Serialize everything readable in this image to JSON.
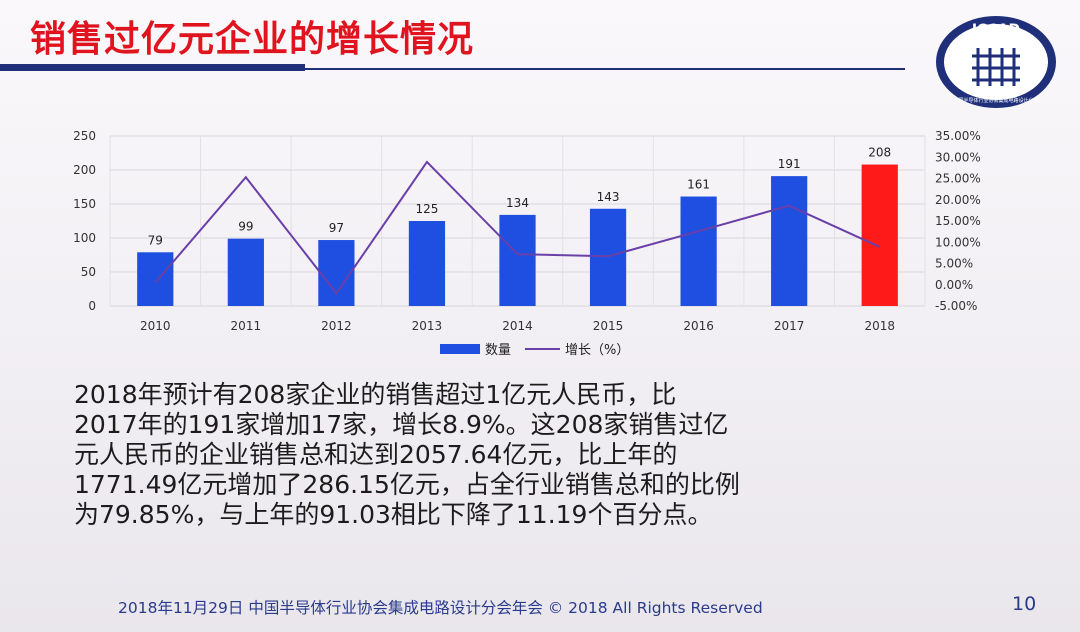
{
  "slide": {
    "title": "销售过亿元企业的增长情况",
    "logo_text": "ICCAD",
    "logo_subtext": "中国半导体行业协会集成电路设计分会",
    "body_lines": [
      "2018年预计有208家企业的销售超过1亿元人民币，比",
      "2017年的191家增加17家，增长8.9%。这208家销售过亿",
      "元人民币的企业销售总和达到2057.64亿元，比上年的",
      "1771.49亿元增加了286.15亿元，占全行业销售总和的比例",
      "为79.85%，与上年的91.03相比下降了11.19个百分点。"
    ],
    "footer": "2018年11月29日 中国半导体行业协会集成电路设计分会年会 © 2018 All Rights Reserved",
    "page_number": "10",
    "colors": {
      "title": "#e0141e",
      "bar": "#1f4fe0",
      "bar_highlight": "#ff1a1a",
      "line": "#6a3fa8",
      "accent": "#1f2f7a"
    }
  },
  "chart_data": {
    "type": "bar",
    "categories": [
      "2010",
      "2011",
      "2012",
      "2013",
      "2014",
      "2015",
      "2016",
      "2017",
      "2018"
    ],
    "series": [
      {
        "name": "数量",
        "type": "bar",
        "axis": "left",
        "values": [
          79,
          99,
          97,
          125,
          134,
          143,
          161,
          191,
          208
        ],
        "highlight_index": 8
      },
      {
        "name": "增长（%）",
        "type": "line",
        "axis": "right",
        "values": [
          0.5,
          25.3,
          -2.0,
          28.9,
          7.2,
          6.7,
          12.6,
          18.6,
          8.9
        ]
      }
    ],
    "y_left": {
      "range": [
        0,
        250
      ],
      "ticks": [
        "0",
        "50",
        "100",
        "150",
        "200",
        "250"
      ]
    },
    "y_right": {
      "range": [
        -5,
        35
      ],
      "ticks": [
        "-5.00%",
        "0.00%",
        "5.00%",
        "10.00%",
        "15.00%",
        "20.00%",
        "25.00%",
        "30.00%",
        "35.00%"
      ]
    },
    "legend": {
      "position": "bottom",
      "items": [
        "数量",
        "增长（%）"
      ]
    },
    "grid": true
  }
}
